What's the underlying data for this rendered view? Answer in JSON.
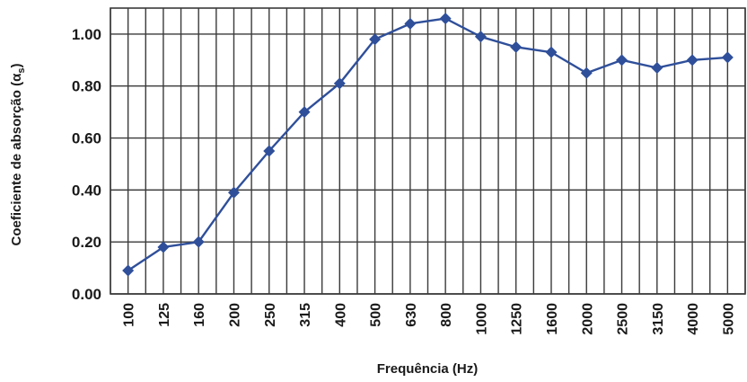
{
  "chart_data": {
    "type": "line",
    "title": "",
    "xlabel": "Frequência (Hz)",
    "ylabel": "Coeficiente de absorção (α",
    "ylabel_subscript": "s",
    "ylabel_close": ")",
    "categories": [
      "100",
      "125",
      "160",
      "200",
      "250",
      "315",
      "400",
      "500",
      "630",
      "800",
      "1000",
      "1250",
      "1600",
      "2000",
      "2500",
      "3150",
      "4000",
      "5000"
    ],
    "y_ticks": [
      "0.00",
      "0.20",
      "0.40",
      "0.60",
      "0.80",
      "1.00"
    ],
    "ylim": [
      0,
      1.1
    ],
    "grid": true,
    "series": [
      {
        "color": "#2f4f9a",
        "marker": "diamond",
        "values": [
          0.09,
          0.18,
          0.2,
          0.39,
          0.55,
          0.7,
          0.81,
          0.98,
          1.04,
          1.06,
          0.99,
          0.95,
          0.93,
          0.85,
          0.9,
          0.87,
          0.9,
          0.91
        ]
      }
    ]
  }
}
